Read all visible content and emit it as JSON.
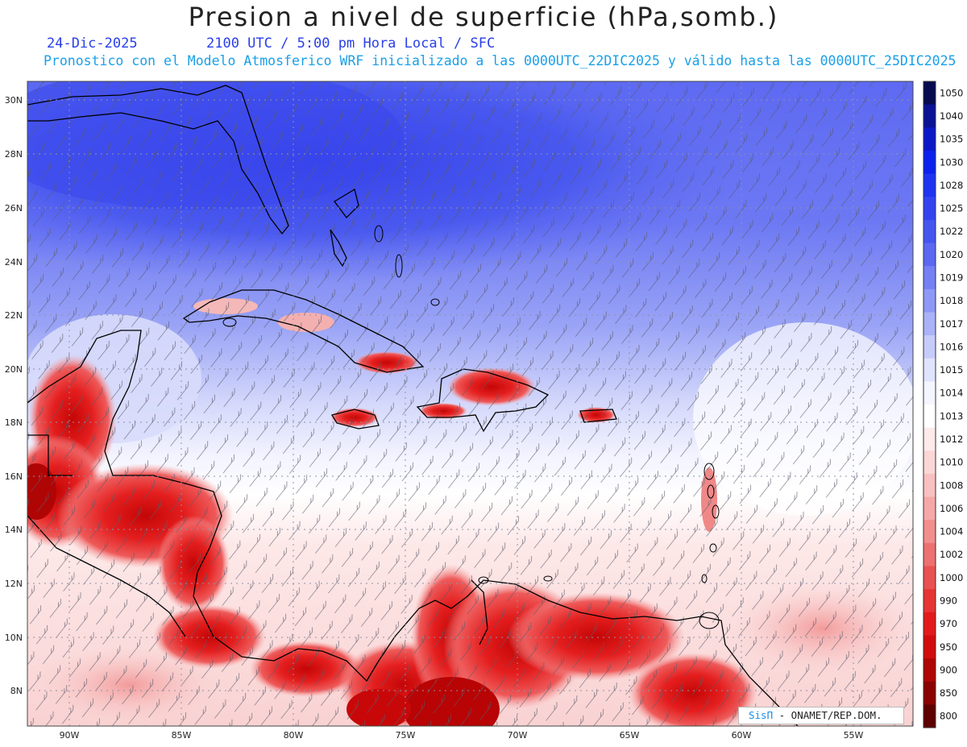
{
  "header": {
    "title": "Presion a nivel de superficie (hPa,somb.)",
    "date": "24-Dic-2025",
    "time_info": "2100 UTC / 5:00 pm Hora Local / SFC",
    "model_info": "Pronostico con el Modelo Atmosferico WRF inicializado a las 0000UTC_22DIC2025 y válido hasta las  0000UTC_25DIC2025"
  },
  "map": {
    "lat_labels": [
      "30N",
      "28N",
      "26N",
      "24N",
      "22N",
      "20N",
      "18N",
      "16N",
      "14N",
      "12N",
      "10N",
      "8N"
    ],
    "lon_labels": [
      "90W",
      "85W",
      "80W",
      "75W",
      "70W",
      "65W",
      "60W",
      "55W"
    ],
    "colors": {
      "high_pressure": "#4a5af0",
      "mid_pressure": "#ffffff",
      "low_pressure": "#e8262a",
      "coast": "#000000",
      "grid": "#9aa0b0"
    }
  },
  "colorbar": {
    "levels": [
      "1050",
      "1040",
      "1035",
      "1030",
      "1028",
      "1025",
      "1022",
      "1020",
      "1019",
      "1018",
      "1017",
      "1016",
      "1015",
      "1014",
      "1013",
      "1012",
      "1010",
      "1008",
      "1006",
      "1004",
      "1002",
      "1000",
      "990",
      "970",
      "950",
      "900",
      "850",
      "800"
    ],
    "colors": [
      "#070b50",
      "#0a1295",
      "#0b18c8",
      "#0d21ee",
      "#1f33f2",
      "#3343f0",
      "#4555f0",
      "#5a68f2",
      "#7480f4",
      "#8e98f6",
      "#aab2f8",
      "#c6ccfa",
      "#e0e3fc",
      "#f4f5fe",
      "#ffffff",
      "#fdeaea",
      "#fbd6d6",
      "#f8c0c0",
      "#f5a8a8",
      "#f28e8e",
      "#ee7070",
      "#ea5252",
      "#e63434",
      "#e21a1a",
      "#d20c0c",
      "#b00606",
      "#8a0303",
      "#5e0101"
    ]
  },
  "credit": {
    "brand": "SisΠ",
    "text": " - ONAMET/REP.DOM."
  }
}
